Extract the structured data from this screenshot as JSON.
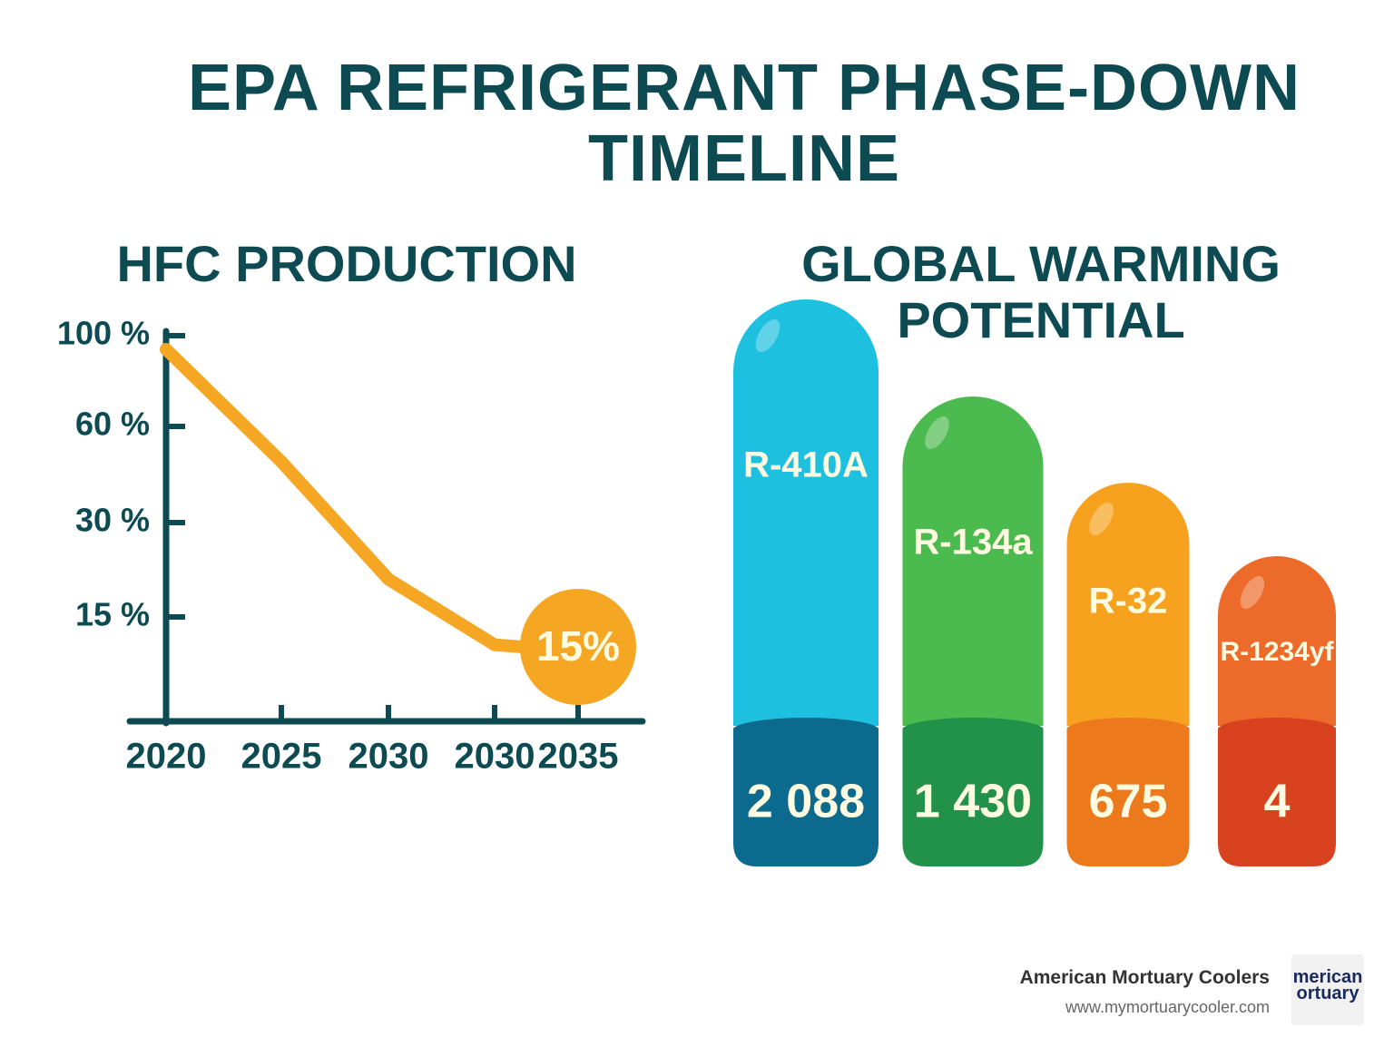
{
  "title": "EPA REFRIGERANT PHASE-DOWN TIMELINE",
  "chart_data": [
    {
      "type": "line",
      "title": "HFC PRODUCTION",
      "categories": [
        "2020",
        "2025",
        "2030",
        "2030",
        "2035"
      ],
      "values": [
        94,
        49,
        21,
        11,
        null
      ],
      "color": "#f5a623",
      "ylim": [
        0,
        100
      ],
      "yticks": [
        {
          "value": 100,
          "label": "100 %"
        },
        {
          "value": 60,
          "label": "60 %"
        },
        {
          "value": 30,
          "label": "30 %"
        },
        {
          "value": 15,
          "label": "15 %"
        }
      ],
      "annotation": "15%"
    },
    {
      "type": "bar",
      "title": "GLOBAL WARMING POTENTIAL",
      "categories": [
        "R-410A",
        "R-134a",
        "R-32",
        "R-1234yf"
      ],
      "values": [
        2088,
        1430,
        675,
        4
      ],
      "value_labels": [
        "2 088",
        "1 430",
        "675",
        "4"
      ],
      "colors": [
        "#1ec0df",
        "#4cbb4f",
        "#f7a21e",
        "#ec6a2a"
      ],
      "base_colors": [
        "#0b6a8e",
        "#22914a",
        "#ec7a1c",
        "#d8421f"
      ]
    }
  ],
  "footer": {
    "name": "American Mortuary Coolers",
    "url": "www.mymortuarycooler.com",
    "logo": [
      "merican",
      "ortuary"
    ]
  }
}
